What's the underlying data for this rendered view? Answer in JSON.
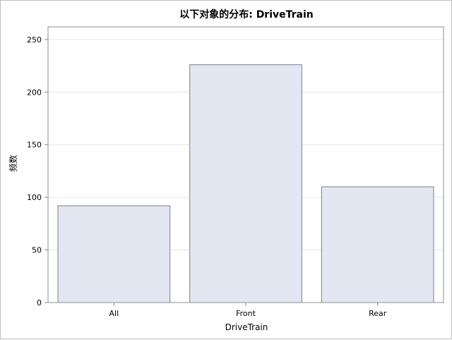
{
  "chart_data": {
    "type": "bar",
    "title": "以下对象的分布: DriveTrain",
    "xlabel": "DriveTrain",
    "ylabel": "频数",
    "categories": [
      "All",
      "Front",
      "Rear"
    ],
    "values": [
      92,
      226,
      110
    ],
    "ylim": [
      0,
      262
    ],
    "yticks": [
      0,
      50,
      100,
      150,
      200,
      250
    ],
    "grid": true,
    "legend": "none",
    "colors": {
      "bar_fill": "#e3e7f1",
      "bar_stroke": "#7a808c",
      "grid": "#e6e6e6"
    }
  }
}
